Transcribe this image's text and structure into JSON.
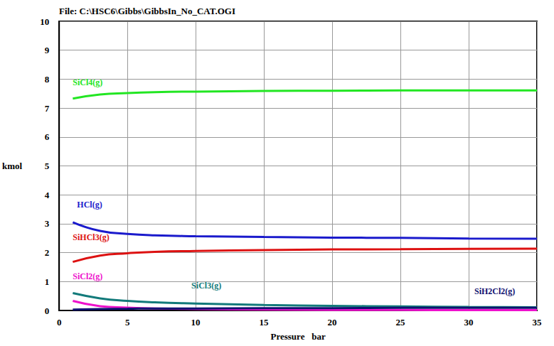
{
  "chart_data": {
    "type": "line",
    "title": "File: C:\\HSC6\\Gibbs\\GibbsIn_No_CAT.OGI",
    "x_label": "Pressure   bar",
    "y_label": "kmol",
    "x": [
      1,
      3,
      5,
      7,
      10,
      15,
      20,
      25,
      30,
      35
    ],
    "xlim": [
      0,
      35
    ],
    "xticks": [
      0,
      5,
      10,
      15,
      20,
      25,
      30,
      35
    ],
    "ylim": [
      0,
      10
    ],
    "yticks": [
      0,
      1,
      2,
      3,
      4,
      5,
      6,
      7,
      8,
      9,
      10
    ],
    "grid": true,
    "series": [
      {
        "name": "SiCl4(g)",
        "color": "#22e622",
        "values": [
          7.33,
          7.47,
          7.52,
          7.55,
          7.57,
          7.59,
          7.6,
          7.61,
          7.61,
          7.61
        ]
      },
      {
        "name": "HCl(g)",
        "color": "#1a1acc",
        "values": [
          3.05,
          2.75,
          2.65,
          2.6,
          2.57,
          2.54,
          2.52,
          2.51,
          2.49,
          2.48
        ]
      },
      {
        "name": "SiHCl3(g)",
        "color": "#dd1111",
        "values": [
          1.68,
          1.9,
          1.98,
          2.03,
          2.06,
          2.09,
          2.11,
          2.12,
          2.13,
          2.14
        ]
      },
      {
        "name": "SiCl2(g)",
        "color": "#ee11cc",
        "values": [
          0.33,
          0.15,
          0.1,
          0.07,
          0.05,
          0.03,
          0.02,
          0.02,
          0.01,
          0.01
        ]
      },
      {
        "name": "SiCl3(g)",
        "color": "#127a7a",
        "values": [
          0.6,
          0.42,
          0.33,
          0.28,
          0.24,
          0.19,
          0.16,
          0.14,
          0.12,
          0.11
        ]
      },
      {
        "name": "SiH2Cl2(g)",
        "color": "#101070",
        "values": [
          0.03,
          0.05,
          0.06,
          0.07,
          0.07,
          0.08,
          0.08,
          0.09,
          0.09,
          0.09
        ]
      }
    ]
  }
}
